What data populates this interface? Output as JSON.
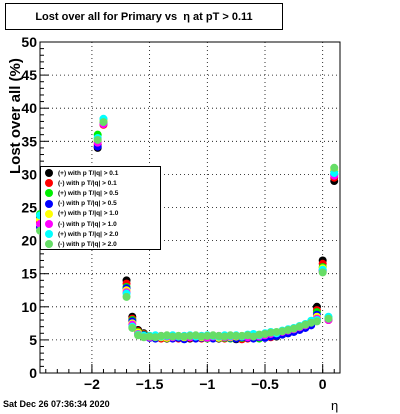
{
  "title": "Lost over all for Primary vs  η at pT > 0.11",
  "footer": "Sat Dec 26 07:36:34 2020",
  "chart_data": {
    "type": "scatter",
    "title": "Lost over all for Primary vs  η at pT > 0.11",
    "xlabel": "η",
    "ylabel": "Lost over all (%)",
    "xlim": [
      -2.45,
      0.15
    ],
    "ylim": [
      0,
      50
    ],
    "xticks": [
      -2,
      -1.5,
      -1,
      -0.5,
      0
    ],
    "xtick_labels": [
      "−2",
      "−1.5",
      "−1",
      "−0.5",
      "0"
    ],
    "yticks": [
      0,
      5,
      10,
      15,
      20,
      25,
      30,
      35,
      40,
      45,
      50
    ],
    "ytick_labels": [
      "0",
      "5",
      "10",
      "15",
      "20",
      "25",
      "30",
      "35",
      "40",
      "45",
      "50"
    ],
    "grid": true,
    "legend_position": "left",
    "x": [
      -2.45,
      -1.95,
      -1.9,
      -1.7,
      -1.65,
      -1.6,
      -1.55,
      -1.5,
      -1.45,
      -1.4,
      -1.35,
      -1.3,
      -1.25,
      -1.2,
      -1.15,
      -1.1,
      -1.05,
      -1.0,
      -0.95,
      -0.9,
      -0.85,
      -0.8,
      -0.75,
      -0.7,
      -0.65,
      -0.6,
      -0.55,
      -0.5,
      -0.45,
      -0.4,
      -0.35,
      -0.3,
      -0.25,
      -0.2,
      -0.15,
      -0.1,
      -0.05,
      0.0,
      0.05,
      0.1
    ],
    "series": [
      {
        "name": "(+) with p T/|q| > 0.1",
        "color": "#000000",
        "values": [
          23.5,
          34.0,
          38.0,
          14.0,
          8.5,
          6.5,
          6.0,
          5.5,
          5.4,
          5.3,
          5.2,
          5.4,
          5.5,
          5.3,
          5.2,
          5.5,
          5.3,
          5.4,
          5.5,
          5.2,
          5.3,
          5.4,
          5.1,
          5.2,
          5.4,
          5.3,
          5.5,
          5.4,
          5.6,
          5.5,
          5.8,
          6.0,
          6.3,
          6.6,
          7.0,
          7.5,
          10.0,
          17.0,
          8.2,
          29.0
        ]
      },
      {
        "name": "(-) with p T/|q| > 0.1",
        "color": "#ff0000",
        "values": [
          22.8,
          34.5,
          37.5,
          13.5,
          8.2,
          6.3,
          5.9,
          5.4,
          5.5,
          5.2,
          5.4,
          5.3,
          5.2,
          5.5,
          5.3,
          5.4,
          5.2,
          5.5,
          5.3,
          5.4,
          5.2,
          5.5,
          5.3,
          5.1,
          5.2,
          5.5,
          5.3,
          5.6,
          5.4,
          5.7,
          5.9,
          6.1,
          6.4,
          6.7,
          6.9,
          7.3,
          9.5,
          16.5,
          8.0,
          29.5
        ]
      },
      {
        "name": "(+) with p T/|q| > 0.5",
        "color": "#00ee00",
        "values": [
          24.0,
          36.0,
          38.3,
          13.0,
          8.0,
          6.2,
          5.8,
          5.6,
          5.3,
          5.5,
          5.3,
          5.6,
          5.4,
          5.2,
          5.6,
          5.3,
          5.5,
          5.2,
          5.4,
          5.5,
          5.3,
          5.2,
          5.5,
          5.3,
          5.6,
          5.4,
          5.2,
          5.5,
          5.7,
          5.6,
          6.0,
          6.2,
          6.5,
          6.8,
          7.1,
          7.6,
          9.2,
          16.0,
          8.4,
          30.5
        ]
      },
      {
        "name": "(-) with p T/|q| > 0.5",
        "color": "#0000ff",
        "values": [
          22.0,
          34.2,
          37.8,
          12.8,
          7.8,
          6.0,
          5.7,
          5.3,
          5.2,
          5.4,
          5.5,
          5.2,
          5.3,
          5.1,
          5.4,
          5.2,
          5.3,
          5.4,
          5.2,
          5.3,
          5.5,
          5.3,
          5.2,
          5.4,
          5.3,
          5.2,
          5.4,
          5.3,
          5.5,
          5.6,
          5.8,
          6.0,
          6.2,
          6.5,
          6.8,
          7.2,
          8.8,
          15.5,
          8.1,
          30.0
        ]
      },
      {
        "name": "(+) with p T/|q| > 1.0",
        "color": "#ffff00",
        "values": [
          23.2,
          35.0,
          38.1,
          12.5,
          7.5,
          6.1,
          5.6,
          5.5,
          5.6,
          5.4,
          5.3,
          5.5,
          5.6,
          5.4,
          5.5,
          5.6,
          5.4,
          5.6,
          5.5,
          5.3,
          5.6,
          5.4,
          5.5,
          5.6,
          5.5,
          5.7,
          5.6,
          5.8,
          6.0,
          6.1,
          6.3,
          6.5,
          6.7,
          7.0,
          7.3,
          7.8,
          8.5,
          15.8,
          8.3,
          30.8
        ]
      },
      {
        "name": "(-) with p T/|q| > 1.0",
        "color": "#ff00ff",
        "values": [
          22.5,
          34.8,
          37.6,
          12.2,
          7.3,
          5.9,
          5.5,
          5.4,
          5.5,
          5.6,
          5.5,
          5.4,
          5.5,
          5.6,
          5.4,
          5.5,
          5.6,
          5.3,
          5.5,
          5.6,
          5.4,
          5.5,
          5.6,
          5.5,
          5.4,
          5.6,
          5.5,
          5.7,
          5.9,
          6.0,
          6.2,
          6.4,
          6.6,
          6.9,
          7.2,
          7.7,
          8.2,
          15.3,
          8.0,
          29.8
        ]
      },
      {
        "name": "(+) with p T/|q| > 2.0",
        "color": "#00ffff",
        "values": [
          23.8,
          35.5,
          38.4,
          12.0,
          7.0,
          5.8,
          5.6,
          5.6,
          5.7,
          5.5,
          5.6,
          5.7,
          5.5,
          5.6,
          5.7,
          5.5,
          5.6,
          5.7,
          5.6,
          5.5,
          5.7,
          5.6,
          5.7,
          5.5,
          5.8,
          5.9,
          5.7,
          6.0,
          6.2,
          6.0,
          6.4,
          6.6,
          6.8,
          7.1,
          7.4,
          7.9,
          8.0,
          15.6,
          8.5,
          30.2
        ]
      },
      {
        "name": "(-) with p T/|q| > 2.0",
        "color": "#66dd66",
        "values": [
          21.5,
          35.2,
          37.9,
          11.5,
          6.8,
          5.7,
          5.4,
          5.5,
          5.4,
          5.6,
          5.7,
          5.5,
          5.6,
          5.5,
          5.6,
          5.7,
          5.5,
          5.6,
          5.7,
          5.6,
          5.5,
          5.7,
          5.6,
          5.6,
          5.7,
          5.5,
          5.8,
          5.9,
          6.1,
          6.2,
          6.3,
          6.5,
          6.7,
          7.0,
          7.3,
          7.6,
          7.8,
          15.2,
          8.2,
          31.0
        ]
      }
    ]
  }
}
